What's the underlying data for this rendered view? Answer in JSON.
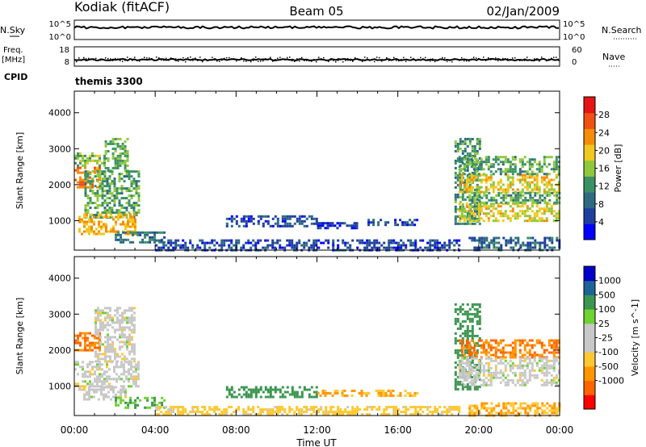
{
  "header": {
    "station": "Kodiak (fitACF)",
    "beam": "Beam 05",
    "date": "02/Jan/2009"
  },
  "strips": {
    "nsky_label": "N.Sky",
    "nsearch_label": "N.Search",
    "freq_label_1": "Freq.",
    "freq_label_2": "[MHz]",
    "nave_label": "Nave",
    "cpid_label": "CPID",
    "cpid_value": "themis 3300",
    "noise_left_ticks": [
      "10^5",
      "10^0"
    ],
    "noise_right_ticks": [
      "10^5",
      "10^0"
    ],
    "freq_left_ticks": [
      "18",
      "8"
    ],
    "nave_right_ticks": [
      "60",
      "0"
    ]
  },
  "colors": {
    "power": [
      "#0000ff",
      "#1f3fa0",
      "#2e6b82",
      "#3c9164",
      "#8fc83c",
      "#f0c81e",
      "#f58c0a",
      "#f05014",
      "#e61414"
    ],
    "velocity": [
      "#ff0000",
      "#ff6400",
      "#ff9600",
      "#ffc832",
      "#c8c8c8",
      "#c8c8c8",
      "#6ed232",
      "#3c9650",
      "#1e6496",
      "#0000c8"
    ]
  },
  "chart_data": [
    {
      "type": "heatmap",
      "title": "",
      "xlabel": "",
      "ylabel": "Slant Range [km]",
      "x_ticks": [
        "00:00",
        "04:00",
        "08:00",
        "12:00",
        "16:00",
        "20:00",
        "00:00"
      ],
      "x_range_hours": [
        0,
        24
      ],
      "y_ticks": [
        1000,
        2000,
        3000,
        4000
      ],
      "y_range_km": [
        180,
        4600
      ],
      "colorbar": {
        "label": "Power [dB]",
        "ticks": [
          4,
          8,
          12,
          16,
          20,
          24,
          28
        ],
        "range": [
          0,
          32
        ]
      },
      "regions": [
        {
          "t0": 0.0,
          "t1": 1.3,
          "r0": 1950,
          "r1": 2500,
          "value": 27
        },
        {
          "t0": 0.0,
          "t1": 1.5,
          "r0": 2500,
          "r1": 2900,
          "value": 17
        },
        {
          "t0": 1.5,
          "t1": 2.6,
          "r0": 2400,
          "r1": 3300,
          "value": 16
        },
        {
          "t0": 0.5,
          "t1": 3.2,
          "r0": 1100,
          "r1": 2400,
          "value": 15
        },
        {
          "t0": 0.2,
          "t1": 3.0,
          "r0": 600,
          "r1": 1200,
          "value": 24
        },
        {
          "t0": 2.0,
          "t1": 4.5,
          "r0": 380,
          "r1": 700,
          "value": 11
        },
        {
          "t0": 7.5,
          "t1": 12.0,
          "r0": 850,
          "r1": 1150,
          "value": 7
        },
        {
          "t0": 12.0,
          "t1": 14.0,
          "r0": 800,
          "r1": 960,
          "value": 5
        },
        {
          "t0": 14.5,
          "t1": 17.0,
          "r0": 850,
          "r1": 1050,
          "value": 7
        },
        {
          "t0": 4.0,
          "t1": 19.0,
          "r0": 200,
          "r1": 480,
          "value": 6
        },
        {
          "t0": 18.8,
          "t1": 20.0,
          "r0": 900,
          "r1": 3300,
          "value": 13
        },
        {
          "t0": 19.0,
          "t1": 24.0,
          "r0": 1800,
          "r1": 2300,
          "value": 22
        },
        {
          "t0": 19.0,
          "t1": 24.0,
          "r0": 1000,
          "r1": 1500,
          "value": 21
        },
        {
          "t0": 19.0,
          "t1": 24.0,
          "r0": 2300,
          "r1": 2800,
          "value": 15
        },
        {
          "t0": 19.5,
          "t1": 24.0,
          "r0": 1500,
          "r1": 1800,
          "value": 15
        },
        {
          "t0": 19.5,
          "t1": 24.0,
          "r0": 200,
          "r1": 550,
          "value": 9
        }
      ]
    },
    {
      "type": "heatmap",
      "title": "",
      "xlabel": "Time UT",
      "ylabel": "Slant Range [km]",
      "x_ticks": [
        "00:00",
        "04:00",
        "08:00",
        "12:00",
        "16:00",
        "20:00",
        "00:00"
      ],
      "x_range_hours": [
        0,
        24
      ],
      "y_ticks": [
        1000,
        2000,
        3000,
        4000
      ],
      "y_range_km": [
        180,
        4600
      ],
      "colorbar": {
        "label": "Velocity [m s^-1]",
        "ticks": [
          "1000",
          "500",
          "100",
          "25",
          "-25",
          "-100",
          "-500",
          "-1000"
        ]
      },
      "regions": [
        {
          "t0": 0.0,
          "t1": 1.3,
          "r0": 2000,
          "r1": 2500,
          "value": -500
        },
        {
          "t0": 0.0,
          "t1": 3.2,
          "r0": 1000,
          "r1": 1700,
          "value": 0
        },
        {
          "t0": 1.0,
          "t1": 3.0,
          "r0": 1700,
          "r1": 3200,
          "value": 0
        },
        {
          "t0": 0.2,
          "t1": 2.5,
          "r0": 600,
          "r1": 1000,
          "value": 0
        },
        {
          "t0": 2.0,
          "t1": 4.5,
          "r0": 380,
          "r1": 700,
          "value": 100
        },
        {
          "t0": 7.5,
          "t1": 12.0,
          "r0": 700,
          "r1": 1000,
          "value": 200
        },
        {
          "t0": 12.0,
          "t1": 17.0,
          "r0": 700,
          "r1": 900,
          "value": -100
        },
        {
          "t0": 4.0,
          "t1": 19.0,
          "r0": 200,
          "r1": 450,
          "value": -50
        },
        {
          "t0": 18.8,
          "t1": 20.0,
          "r0": 900,
          "r1": 3300,
          "value": 200
        },
        {
          "t0": 19.0,
          "t1": 24.0,
          "r0": 1800,
          "r1": 2300,
          "value": -500
        },
        {
          "t0": 19.0,
          "t1": 24.0,
          "r0": 1000,
          "r1": 1800,
          "value": 0
        },
        {
          "t0": 19.5,
          "t1": 24.0,
          "r0": 200,
          "r1": 550,
          "value": -100
        }
      ]
    }
  ]
}
